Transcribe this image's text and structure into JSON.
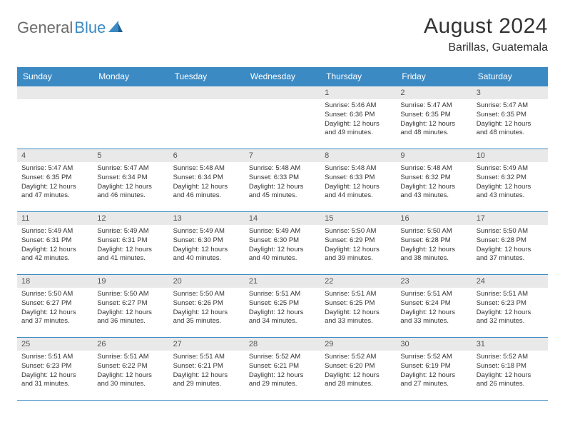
{
  "brand": {
    "name_part1": "General",
    "name_part2": "Blue"
  },
  "title": {
    "month": "August 2024",
    "location": "Barillas, Guatemala"
  },
  "colors": {
    "header_bg": "#3b8ac4",
    "daynum_bg": "#e9e9e9",
    "rule": "#3b8ac4"
  },
  "weekdays": [
    "Sunday",
    "Monday",
    "Tuesday",
    "Wednesday",
    "Thursday",
    "Friday",
    "Saturday"
  ],
  "days": [
    {
      "n": 1,
      "sunrise": "5:46 AM",
      "sunset": "6:36 PM",
      "daylight": "12 hours and 49 minutes."
    },
    {
      "n": 2,
      "sunrise": "5:47 AM",
      "sunset": "6:35 PM",
      "daylight": "12 hours and 48 minutes."
    },
    {
      "n": 3,
      "sunrise": "5:47 AM",
      "sunset": "6:35 PM",
      "daylight": "12 hours and 48 minutes."
    },
    {
      "n": 4,
      "sunrise": "5:47 AM",
      "sunset": "6:35 PM",
      "daylight": "12 hours and 47 minutes."
    },
    {
      "n": 5,
      "sunrise": "5:47 AM",
      "sunset": "6:34 PM",
      "daylight": "12 hours and 46 minutes."
    },
    {
      "n": 6,
      "sunrise": "5:48 AM",
      "sunset": "6:34 PM",
      "daylight": "12 hours and 46 minutes."
    },
    {
      "n": 7,
      "sunrise": "5:48 AM",
      "sunset": "6:33 PM",
      "daylight": "12 hours and 45 minutes."
    },
    {
      "n": 8,
      "sunrise": "5:48 AM",
      "sunset": "6:33 PM",
      "daylight": "12 hours and 44 minutes."
    },
    {
      "n": 9,
      "sunrise": "5:48 AM",
      "sunset": "6:32 PM",
      "daylight": "12 hours and 43 minutes."
    },
    {
      "n": 10,
      "sunrise": "5:49 AM",
      "sunset": "6:32 PM",
      "daylight": "12 hours and 43 minutes."
    },
    {
      "n": 11,
      "sunrise": "5:49 AM",
      "sunset": "6:31 PM",
      "daylight": "12 hours and 42 minutes."
    },
    {
      "n": 12,
      "sunrise": "5:49 AM",
      "sunset": "6:31 PM",
      "daylight": "12 hours and 41 minutes."
    },
    {
      "n": 13,
      "sunrise": "5:49 AM",
      "sunset": "6:30 PM",
      "daylight": "12 hours and 40 minutes."
    },
    {
      "n": 14,
      "sunrise": "5:49 AM",
      "sunset": "6:30 PM",
      "daylight": "12 hours and 40 minutes."
    },
    {
      "n": 15,
      "sunrise": "5:50 AM",
      "sunset": "6:29 PM",
      "daylight": "12 hours and 39 minutes."
    },
    {
      "n": 16,
      "sunrise": "5:50 AM",
      "sunset": "6:28 PM",
      "daylight": "12 hours and 38 minutes."
    },
    {
      "n": 17,
      "sunrise": "5:50 AM",
      "sunset": "6:28 PM",
      "daylight": "12 hours and 37 minutes."
    },
    {
      "n": 18,
      "sunrise": "5:50 AM",
      "sunset": "6:27 PM",
      "daylight": "12 hours and 37 minutes."
    },
    {
      "n": 19,
      "sunrise": "5:50 AM",
      "sunset": "6:27 PM",
      "daylight": "12 hours and 36 minutes."
    },
    {
      "n": 20,
      "sunrise": "5:50 AM",
      "sunset": "6:26 PM",
      "daylight": "12 hours and 35 minutes."
    },
    {
      "n": 21,
      "sunrise": "5:51 AM",
      "sunset": "6:25 PM",
      "daylight": "12 hours and 34 minutes."
    },
    {
      "n": 22,
      "sunrise": "5:51 AM",
      "sunset": "6:25 PM",
      "daylight": "12 hours and 33 minutes."
    },
    {
      "n": 23,
      "sunrise": "5:51 AM",
      "sunset": "6:24 PM",
      "daylight": "12 hours and 33 minutes."
    },
    {
      "n": 24,
      "sunrise": "5:51 AM",
      "sunset": "6:23 PM",
      "daylight": "12 hours and 32 minutes."
    },
    {
      "n": 25,
      "sunrise": "5:51 AM",
      "sunset": "6:23 PM",
      "daylight": "12 hours and 31 minutes."
    },
    {
      "n": 26,
      "sunrise": "5:51 AM",
      "sunset": "6:22 PM",
      "daylight": "12 hours and 30 minutes."
    },
    {
      "n": 27,
      "sunrise": "5:51 AM",
      "sunset": "6:21 PM",
      "daylight": "12 hours and 29 minutes."
    },
    {
      "n": 28,
      "sunrise": "5:52 AM",
      "sunset": "6:21 PM",
      "daylight": "12 hours and 29 minutes."
    },
    {
      "n": 29,
      "sunrise": "5:52 AM",
      "sunset": "6:20 PM",
      "daylight": "12 hours and 28 minutes."
    },
    {
      "n": 30,
      "sunrise": "5:52 AM",
      "sunset": "6:19 PM",
      "daylight": "12 hours and 27 minutes."
    },
    {
      "n": 31,
      "sunrise": "5:52 AM",
      "sunset": "6:18 PM",
      "daylight": "12 hours and 26 minutes."
    }
  ],
  "labels": {
    "sunrise": "Sunrise:",
    "sunset": "Sunset:",
    "daylight": "Daylight:"
  },
  "layout": {
    "first_weekday_index": 4,
    "weeks": 5,
    "cols": 7
  }
}
